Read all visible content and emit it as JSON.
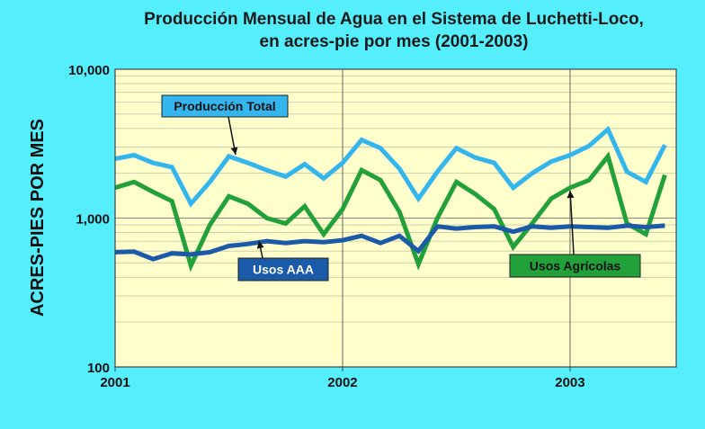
{
  "chart_data": {
    "type": "line",
    "title_line1": "Producción Mensual de Agua en el Sistema de Luchetti-Loco,",
    "title_line2": "en acres-pie por mes (2001-2003)",
    "ylabel": "ACRES-PIES POR MES",
    "xlabel": "",
    "y_scale": "log",
    "ylim": [
      100,
      10000
    ],
    "y_ticks": [
      100,
      1000,
      10000
    ],
    "y_tick_labels": [
      "100",
      "1,000",
      "10,000"
    ],
    "x_tick_labels": [
      "2001",
      "2002",
      "2003"
    ],
    "x_tick_months": [
      0,
      12,
      24
    ],
    "grid": true,
    "months": 30,
    "series": [
      {
        "name": "Producción Total",
        "color": "#33b5ee",
        "values": [
          2500,
          2650,
          2350,
          2200,
          1250,
          1750,
          2600,
          2350,
          2100,
          1900,
          2300,
          1850,
          2350,
          3350,
          2950,
          2150,
          1350,
          2050,
          2950,
          2550,
          2350,
          1600,
          2000,
          2400,
          2650,
          3050,
          3950,
          2050,
          1750,
          3100
        ]
      },
      {
        "name": "Usos Agrícolas",
        "color": "#22a03a",
        "values": [
          1600,
          1750,
          1500,
          1300,
          480,
          900,
          1400,
          1250,
          1000,
          920,
          1200,
          780,
          1150,
          2100,
          1800,
          1100,
          490,
          1000,
          1750,
          1450,
          1150,
          640,
          920,
          1350,
          1600,
          1800,
          2600,
          920,
          780,
          1950
        ]
      },
      {
        "name": "Usos AAA",
        "color": "#1a5aa8",
        "values": [
          590,
          595,
          530,
          580,
          570,
          590,
          650,
          670,
          700,
          680,
          700,
          690,
          710,
          760,
          680,
          760,
          600,
          880,
          850,
          870,
          880,
          810,
          880,
          860,
          880,
          870,
          860,
          890,
          870,
          890
        ]
      }
    ],
    "callouts": [
      {
        "label": "Producción Total",
        "text_color": "#111111",
        "fill": "#33b5ee"
      },
      {
        "label": "Usos AAA",
        "text_color": "#ffffff",
        "fill": "#1a5aa8"
      },
      {
        "label": "Usos  Agrícolas",
        "text_color": "#111111",
        "fill": "#22a03a"
      }
    ],
    "colors": {
      "background": "#55eefd",
      "plot_background": "#ffffcc",
      "gridline": "#cfcfb0",
      "year_gridline": "#666666"
    }
  }
}
